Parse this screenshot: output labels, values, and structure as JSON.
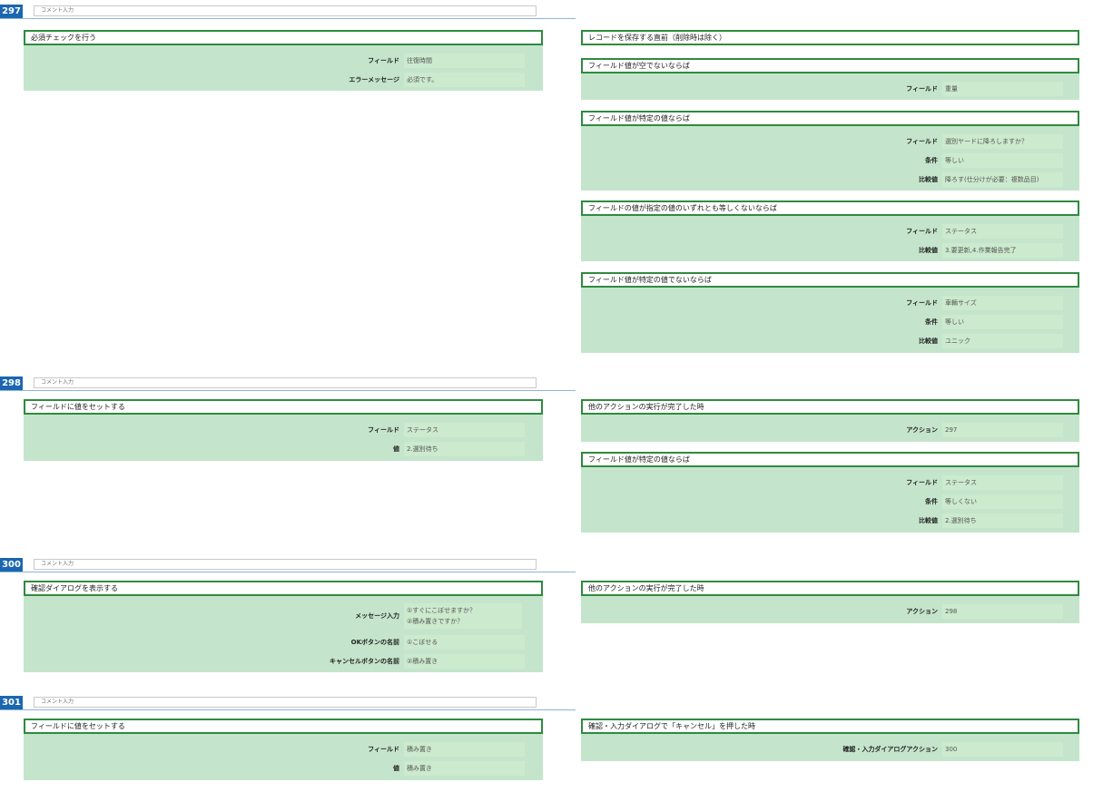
{
  "comment_placeholder": "コメント入力",
  "blocks": [
    {
      "number": "297",
      "left": [
        {
          "title": "必須チェックを行う",
          "rows": [
            {
              "label": "フィールド",
              "value": "往復時間"
            },
            {
              "label": "エラーメッセージ",
              "value": "必須です。"
            }
          ]
        }
      ],
      "right": [
        {
          "title": "レコードを保存する直前（削除時は除く）",
          "rows": []
        },
        {
          "title": "フィールド値が空でないならば",
          "rows": [
            {
              "label": "フィールド",
              "value": "重量"
            }
          ]
        },
        {
          "title": "フィールド値が特定の値ならば",
          "rows": [
            {
              "label": "フィールド",
              "value": "選別ヤードに降ろしますか？"
            },
            {
              "label": "条件",
              "value": "等しい"
            },
            {
              "label": "比較値",
              "value": "降ろす(仕分けが必要：複数品目)"
            }
          ]
        },
        {
          "title": "フィールドの値が指定の値のいずれとも等しくないならば",
          "rows": [
            {
              "label": "フィールド",
              "value": "ステータス"
            },
            {
              "label": "比較値",
              "value": "3.要更新,4.作業報告完了"
            }
          ]
        },
        {
          "title": "フィールド値が特定の値でないならば",
          "rows": [
            {
              "label": "フィールド",
              "value": "車輌サイズ"
            },
            {
              "label": "条件",
              "value": "等しい"
            },
            {
              "label": "比較値",
              "value": "ユニック"
            }
          ]
        }
      ]
    },
    {
      "number": "298",
      "left": [
        {
          "title": "フィールドに値をセットする",
          "rows": [
            {
              "label": "フィールド",
              "value": "ステータス"
            },
            {
              "label": "値",
              "value": "2.選別待ち"
            }
          ]
        }
      ],
      "right": [
        {
          "title": "他のアクションの実行が完了した時",
          "rows": [
            {
              "label": "アクション",
              "value": "297"
            }
          ]
        },
        {
          "title": "フィールド値が特定の値ならば",
          "rows": [
            {
              "label": "フィールド",
              "value": "ステータス"
            },
            {
              "label": "条件",
              "value": "等しくない"
            },
            {
              "label": "比較値",
              "value": "2.選別待ち"
            }
          ]
        }
      ]
    },
    {
      "number": "300",
      "left": [
        {
          "title": "確認ダイアログを表示する",
          "rows": [
            {
              "label": "メッセージ入力",
              "value": "①すぐにこぼせますか？",
              "value2": "②積み置きですか？"
            },
            {
              "label": "OKボタンの名前",
              "value": "①こぼせる"
            },
            {
              "label": "キャンセルボタンの名前",
              "value": "②積み置き"
            }
          ]
        }
      ],
      "right": [
        {
          "title": "他のアクションの実行が完了した時",
          "rows": [
            {
              "label": "アクション",
              "value": "298"
            }
          ]
        }
      ]
    },
    {
      "number": "301",
      "left": [
        {
          "title": "フィールドに値をセットする",
          "rows": [
            {
              "label": "フィールド",
              "value": "積み置き"
            },
            {
              "label": "値",
              "value": "積み置き"
            }
          ]
        }
      ],
      "right": [
        {
          "title": "確認・入力ダイアログで「キャンセル」を押した時",
          "rows": [
            {
              "label": "確認・入力ダイアログアクション",
              "value": "300"
            }
          ]
        }
      ]
    }
  ]
}
